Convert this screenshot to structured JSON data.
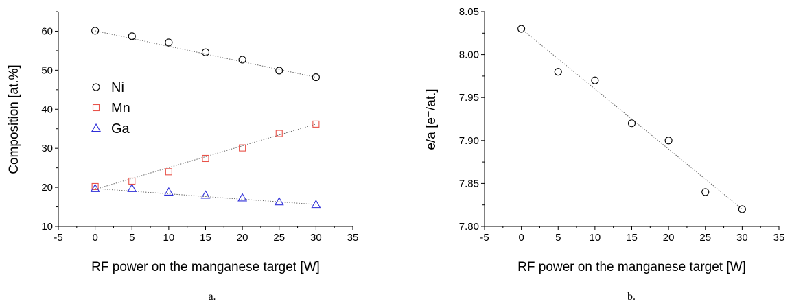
{
  "chart_data": [
    {
      "type": "scatter",
      "panel_label": "a.",
      "xlabel": "RF power on the manganese target [W]",
      "ylabel": "Composition [at.%]",
      "xlim": [
        -5,
        35
      ],
      "ylim": [
        10,
        65
      ],
      "xticks": [
        "-5",
        "0",
        "5",
        "10",
        "15",
        "20",
        "25",
        "30",
        "35"
      ],
      "yticks": [
        "10",
        "20",
        "30",
        "40",
        "50",
        "60"
      ],
      "grid": false,
      "legend_position": "center-left",
      "x": [
        0,
        5,
        10,
        15,
        20,
        25,
        30
      ],
      "series": [
        {
          "name": "Ni",
          "marker": "circle",
          "color": "#000000",
          "values": [
            60.1,
            58.7,
            57.1,
            54.6,
            52.7,
            49.9,
            48.2
          ]
        },
        {
          "name": "Mn",
          "marker": "square",
          "color": "#e8534a",
          "values": [
            20.2,
            21.6,
            24.0,
            27.4,
            30.1,
            33.8,
            36.2
          ]
        },
        {
          "name": "Ga",
          "marker": "triangle",
          "color": "#2f2fd8",
          "values": [
            19.7,
            19.7,
            18.8,
            18.0,
            17.3,
            16.3,
            15.6
          ]
        }
      ],
      "fit_lines": [
        {
          "series": "Ni",
          "x": [
            0,
            30
          ],
          "y": [
            60.1,
            48.2
          ]
        },
        {
          "series": "Mn",
          "x": [
            0,
            30
          ],
          "y": [
            19.5,
            36.2
          ]
        },
        {
          "series": "Ga",
          "x": [
            0,
            30
          ],
          "y": [
            19.7,
            15.6
          ]
        }
      ]
    },
    {
      "type": "scatter",
      "panel_label": "b.",
      "xlabel": "RF power on the manganese target [W]",
      "ylabel": "e/a [e⁻/at.]",
      "xlim": [
        -5,
        35
      ],
      "ylim": [
        7.8,
        8.05
      ],
      "xticks": [
        "-5",
        "0",
        "5",
        "10",
        "15",
        "20",
        "25",
        "30",
        "35"
      ],
      "yticks": [
        "7.80",
        "7.85",
        "7.90",
        "7.95",
        "8.00",
        "8.05"
      ],
      "grid": false,
      "x": [
        0,
        5,
        10,
        15,
        20,
        25,
        30
      ],
      "series": [
        {
          "name": "",
          "marker": "circle",
          "color": "#000000",
          "values": [
            8.03,
            7.98,
            7.97,
            7.92,
            7.9,
            7.84,
            7.82
          ]
        }
      ],
      "fit_lines": [
        {
          "series": "",
          "x": [
            0,
            30
          ],
          "y": [
            8.03,
            7.82
          ]
        }
      ]
    }
  ]
}
